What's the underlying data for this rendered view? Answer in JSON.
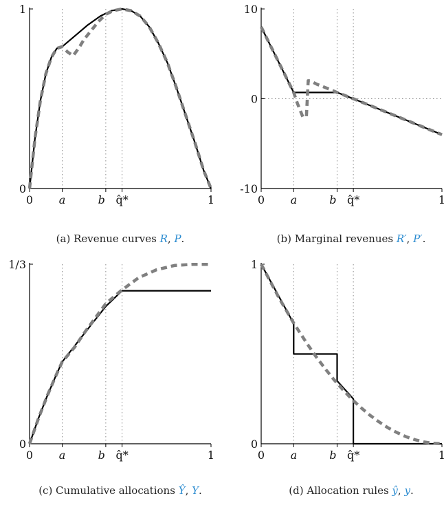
{
  "chart_data": [
    {
      "id": "a",
      "type": "line",
      "caption": {
        "prefix": "(a) Revenue curves ",
        "sym1": "R",
        "sep": ", ",
        "sym2": "P",
        "suffix": "."
      },
      "xlim": [
        0,
        1
      ],
      "ylim": [
        0,
        1
      ],
      "xticks": [
        "0",
        "a",
        "b",
        "q̂*",
        "1"
      ],
      "yticks": [
        "0",
        "1"
      ],
      "markers": {
        "a": 0.18,
        "b": 0.42,
        "qhat": 0.51
      },
      "series": [
        {
          "style": "solid-black",
          "x": [
            0,
            0.03,
            0.06,
            0.09,
            0.12,
            0.15,
            0.18,
            0.25,
            0.32,
            0.39,
            0.45,
            0.51,
            0.56,
            0.61,
            0.66,
            0.71,
            0.76,
            0.81,
            0.86,
            0.91,
            0.96,
            1.0
          ],
          "y": [
            0,
            0.28,
            0.49,
            0.64,
            0.73,
            0.78,
            0.79,
            0.85,
            0.91,
            0.96,
            0.99,
            1.0,
            0.99,
            0.96,
            0.9,
            0.81,
            0.7,
            0.56,
            0.41,
            0.26,
            0.1,
            0
          ]
        },
        {
          "style": "dashed-gray",
          "x": [
            0,
            0.03,
            0.06,
            0.09,
            0.12,
            0.15,
            0.18,
            0.21,
            0.24,
            0.27,
            0.3,
            0.34,
            0.38,
            0.42,
            0.46,
            0.51,
            0.56,
            0.61,
            0.66,
            0.71,
            0.76,
            0.81,
            0.86,
            0.91,
            0.96,
            1.0
          ],
          "y": [
            0,
            0.28,
            0.49,
            0.64,
            0.73,
            0.78,
            0.79,
            0.76,
            0.74,
            0.78,
            0.83,
            0.88,
            0.93,
            0.97,
            0.99,
            1.0,
            0.99,
            0.96,
            0.9,
            0.81,
            0.7,
            0.56,
            0.41,
            0.26,
            0.1,
            0
          ]
        }
      ]
    },
    {
      "id": "b",
      "type": "line",
      "caption": {
        "prefix": "(b) Marginal revenues ",
        "sym1": "R′",
        "sep": ", ",
        "sym2": "P′",
        "suffix": "."
      },
      "xlim": [
        0,
        1
      ],
      "ylim": [
        -10,
        10
      ],
      "xticks": [
        "0",
        "a",
        "b",
        "q̂*",
        "1"
      ],
      "yticks": [
        "-10",
        "0",
        "10"
      ],
      "markers": {
        "a": 0.18,
        "b": 0.42,
        "qhat": 0.51
      },
      "zero_line": true,
      "series": [
        {
          "style": "solid-black",
          "x": [
            0,
            0.18,
            0.18,
            0.42,
            0.51,
            1.0
          ],
          "y": [
            8,
            0.7,
            0.7,
            0.7,
            0,
            -4
          ]
        },
        {
          "style": "dashed-gray",
          "x": [
            0,
            0.18,
            0.2,
            0.23,
            0.25,
            0.26,
            0.27,
            0.31,
            0.36,
            0.42,
            0.51,
            1.0
          ],
          "y": [
            8,
            0.7,
            -0.5,
            -2,
            -2,
            2,
            2,
            1.6,
            1.2,
            0.7,
            0,
            -4
          ]
        }
      ]
    },
    {
      "id": "c",
      "type": "line",
      "caption": {
        "prefix": "(c) Cumulative allocations ",
        "sym1": "Ŷ",
        "sep": ", ",
        "sym2": "Y",
        "suffix": "."
      },
      "xlim": [
        0,
        1
      ],
      "ylim": [
        0,
        0.3333
      ],
      "xticks": [
        "0",
        "a",
        "b",
        "q̂*",
        "1"
      ],
      "yticks": [
        "0",
        "1/3"
      ],
      "markers": {
        "a": 0.18,
        "b": 0.42,
        "qhat": 0.51
      },
      "series": [
        {
          "style": "solid-black",
          "x": [
            0,
            0.05,
            0.1,
            0.15,
            0.18,
            0.3,
            0.42,
            0.51,
            1.0
          ],
          "y": [
            0,
            0.048,
            0.091,
            0.13,
            0.152,
            0.204,
            0.255,
            0.284,
            0.284
          ]
        },
        {
          "style": "dashed-gray",
          "x": [
            0,
            0.05,
            0.1,
            0.15,
            0.18,
            0.25,
            0.3,
            0.35,
            0.42,
            0.5,
            0.6,
            0.7,
            0.8,
            0.9,
            1.0
          ],
          "y": [
            0,
            0.048,
            0.091,
            0.13,
            0.152,
            0.18,
            0.205,
            0.228,
            0.26,
            0.283,
            0.308,
            0.323,
            0.331,
            0.333,
            0.333
          ]
        }
      ]
    },
    {
      "id": "d",
      "type": "line",
      "caption": {
        "prefix": "(d) Allocation rules ",
        "sym1": "ŷ",
        "sep": ", ",
        "sym2": "y",
        "suffix": "."
      },
      "xlim": [
        0,
        1
      ],
      "ylim": [
        0,
        1
      ],
      "xticks": [
        "0",
        "a",
        "b",
        "q̂*",
        "1"
      ],
      "yticks": [
        "0",
        "1"
      ],
      "markers": {
        "a": 0.18,
        "b": 0.42,
        "qhat": 0.51
      },
      "series": [
        {
          "style": "solid-black",
          "x": [
            0,
            0.18,
            0.18,
            0.42,
            0.42,
            0.51,
            0.51,
            1.0
          ],
          "y": [
            1,
            0.67,
            0.5,
            0.5,
            0.35,
            0.25,
            0,
            0
          ]
        },
        {
          "style": "dashed-gray",
          "x": [
            0,
            0.1,
            0.18,
            0.25,
            0.3,
            0.35,
            0.4,
            0.45,
            0.5,
            0.55,
            0.6,
            0.65,
            0.7,
            0.75,
            0.8,
            0.85,
            0.9,
            0.95,
            1.0
          ],
          "y": [
            1,
            0.81,
            0.672,
            0.563,
            0.49,
            0.423,
            0.36,
            0.303,
            0.25,
            0.203,
            0.16,
            0.123,
            0.09,
            0.063,
            0.04,
            0.023,
            0.01,
            0.003,
            0
          ]
        }
      ]
    }
  ],
  "colors": {
    "solid": "#000000",
    "dashed": "#808080",
    "guide": "#8a8a8a",
    "caption_symbol": "#2a8bd0"
  }
}
